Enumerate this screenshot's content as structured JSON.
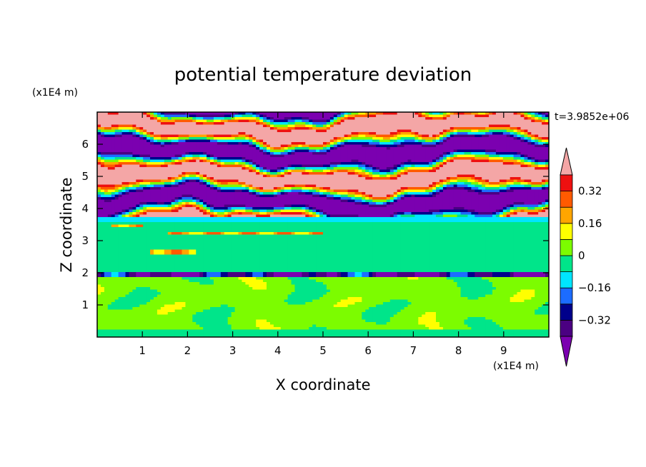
{
  "chart_data": {
    "type": "heatmap",
    "title": "potential temperature deviation",
    "xlabel": "X coordinate",
    "ylabel": "Z coordinate",
    "x_unit": "(x1E4 m)",
    "y_unit": "(x1E4 m)",
    "time_label": "t=3.9852e+06",
    "xlim": [
      0,
      10
    ],
    "ylim": [
      0,
      7
    ],
    "x_ticks": [
      1,
      2,
      3,
      4,
      5,
      6,
      7,
      8,
      9
    ],
    "y_ticks": [
      1,
      2,
      3,
      4,
      5,
      6
    ],
    "x_tick_labels": [
      "1",
      "2",
      "3",
      "4",
      "5",
      "6",
      "7",
      "8",
      "9"
    ],
    "y_tick_labels": [
      "1",
      "2",
      "3",
      "4",
      "5",
      "6"
    ],
    "colorbar": {
      "levels": [
        -0.4,
        -0.32,
        -0.24,
        -0.16,
        -0.08,
        0,
        0.08,
        0.16,
        0.24,
        0.32,
        0.4
      ],
      "labels": [
        "0.32",
        "0.16",
        "0",
        "−0.16",
        "−0.32"
      ],
      "label_values": [
        0.32,
        0.16,
        0,
        -0.16,
        -0.32
      ],
      "colors": [
        "#4b0082",
        "#00008b",
        "#1c6cff",
        "#00e5ff",
        "#00e58a",
        "#7cfc00",
        "#ffff00",
        "#ffa500",
        "#ff5a00",
        "#ee1010"
      ],
      "under_color": "#7b00b0",
      "over_color": "#f4a6a6"
    },
    "regions": [
      {
        "z_range": [
          0,
          1.9
        ],
        "dominant": 0.04,
        "note": "green cellular convection"
      },
      {
        "z_range": [
          1.9,
          2.05
        ],
        "dominant": -0.3,
        "note": "thin dark layer"
      },
      {
        "z_range": [
          2.05,
          3.7
        ],
        "dominant": 0.0,
        "note": "green/teal layered"
      },
      {
        "z_range": [
          3.7,
          7.0
        ],
        "dominant": 0.45,
        "note": "alternating pink/purple bands"
      }
    ]
  }
}
